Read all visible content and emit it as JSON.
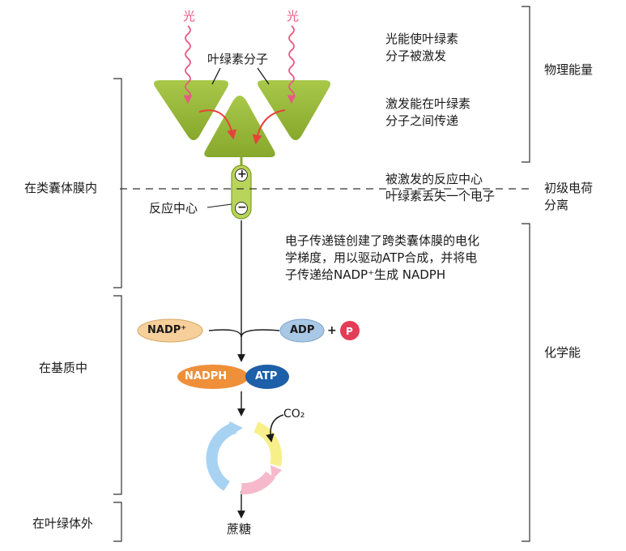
{
  "light": {
    "left": "光",
    "right": "光"
  },
  "chlorophyll_label": "叶绿素分子",
  "reaction_center": {
    "label": "反应中心",
    "plus": "+",
    "minus": "−"
  },
  "regions": {
    "thylakoid": "在类囊体膜内",
    "stroma": "在基质中",
    "outside": "在叶绿体外"
  },
  "notes": {
    "excite": [
      "光能使叶绿素",
      "分子被激发"
    ],
    "transfer": [
      "激发能在叶绿素",
      "分子之间传递"
    ],
    "separation": [
      "被激发的反应中心",
      "叶绿素丢失一个电子"
    ],
    "transport": [
      "电子传递链创建了跨类囊体膜的电化",
      "学梯度，用以驱动ATP合成，并将电",
      "子传递给NADP⁺生成 NADPH"
    ]
  },
  "energy": {
    "physical": "物理能量",
    "primary": [
      "初级电荷",
      "分离"
    ],
    "chemical": "化学能"
  },
  "molecules": {
    "nadp": "NADP⁺",
    "adp": "ADP",
    "plus": "+",
    "p": "P",
    "nadph": "NADPH",
    "atp": "ATP",
    "co2": "CO₂",
    "sucrose": "蔗糖"
  },
  "colors": {
    "chlorophyll_green": "#9bbf3a",
    "light_wave": "#e85a82",
    "nadp": "#f6cf9a",
    "adp": "#a9c8e6",
    "p": "#e33c57",
    "nadph": "#ef8f3a",
    "atp": "#1d5fa8",
    "cycle_blue": "#a8d2f2",
    "cycle_yellow": "#f7f08a",
    "cycle_pink": "#f6b9cc"
  }
}
